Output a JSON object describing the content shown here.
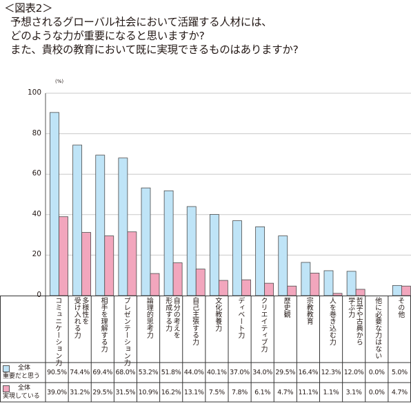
{
  "title": {
    "line1": "＜図表2＞",
    "line2": "予想されるグローバル社会において活躍する人材には、",
    "line3": "どのような力が重要になると思いますか?",
    "line4": "また、貴校の教育において既に実現できるものはありますか?"
  },
  "chart_data": {
    "type": "bar",
    "unit_label": "(%)",
    "ylim": [
      0,
      100
    ],
    "yticks": [
      "0",
      "20",
      "40",
      "60",
      "80",
      "100"
    ],
    "grid": true,
    "categories": [
      [
        "コミュニケーション力"
      ],
      [
        "多様性を",
        "受け入れる力"
      ],
      [
        "相手を理解する力"
      ],
      [
        "プレゼンテーション力"
      ],
      [
        "論理的思考力"
      ],
      [
        "自分の考えを",
        "形成する力"
      ],
      [
        "自己主張する力"
      ],
      [
        "文化教養力"
      ],
      [
        "ディベート力"
      ],
      [
        "クリエイティブ力"
      ],
      [
        "歴史観"
      ],
      [
        "宗教教育"
      ],
      [
        "人を巻き込む力"
      ],
      [
        "哲学や古典から",
        "学ぶ力"
      ],
      [
        "他に必要な力はない"
      ],
      [
        "その他"
      ]
    ],
    "series": [
      {
        "name_line1": "全体",
        "name_line2": "重要だと思う",
        "color": "#bfe4f7",
        "values": [
          90.5,
          74.4,
          69.4,
          68.0,
          53.2,
          51.8,
          44.0,
          40.1,
          37.0,
          34.0,
          29.5,
          16.4,
          12.3,
          12.0,
          0.0,
          5.0
        ],
        "labels": [
          "90.5%",
          "74.4%",
          "69.4%",
          "68.0%",
          "53.2%",
          "51.8%",
          "44.0%",
          "40.1%",
          "37.0%",
          "34.0%",
          "29.5%",
          "16.4%",
          "12.3%",
          "12.0%",
          "0.0%",
          "5.0%"
        ]
      },
      {
        "name_line1": "全体",
        "name_line2": "実現している",
        "color": "#f2a6bd",
        "values": [
          39.0,
          31.2,
          29.5,
          31.5,
          10.9,
          16.2,
          13.1,
          7.5,
          7.8,
          6.1,
          4.7,
          11.1,
          1.1,
          3.1,
          0.0,
          4.7
        ],
        "labels": [
          "39.0%",
          "31.2%",
          "29.5%",
          "31.5%",
          "10.9%",
          "16.2%",
          "13.1%",
          "7.5%",
          "7.8%",
          "6.1%",
          "4.7%",
          "11.1%",
          "1.1%",
          "3.1%",
          "0.0%",
          "4.7%"
        ]
      }
    ]
  }
}
